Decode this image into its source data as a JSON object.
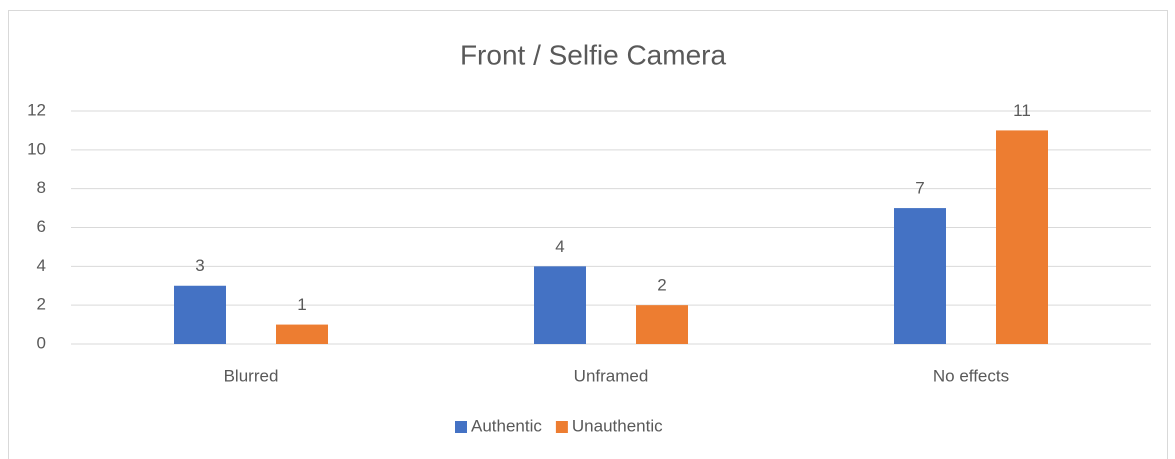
{
  "chart_data": {
    "type": "bar",
    "title": "Front / Selfie Camera",
    "categories": [
      "Blurred",
      "Unframed",
      "No effects"
    ],
    "series": [
      {
        "name": "Authentic",
        "color": "#4472c4",
        "values": [
          3,
          4,
          7
        ]
      },
      {
        "name": "Unauthentic",
        "color": "#ed7d31",
        "values": [
          1,
          2,
          11
        ]
      }
    ],
    "ylim": [
      0,
      12
    ],
    "yticks": [
      0,
      2,
      4,
      6,
      8,
      10,
      12
    ],
    "grid": true,
    "legend": "bottom"
  }
}
